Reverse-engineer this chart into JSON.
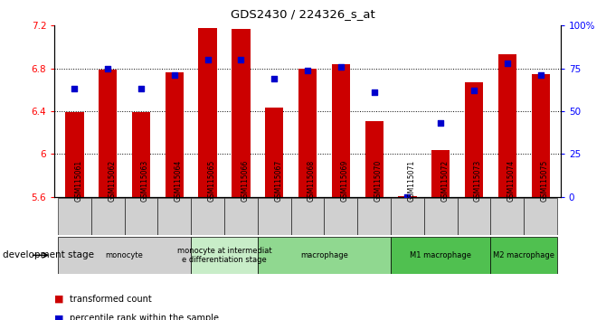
{
  "title": "GDS2430 / 224326_s_at",
  "samples": [
    "GSM115061",
    "GSM115062",
    "GSM115063",
    "GSM115064",
    "GSM115065",
    "GSM115066",
    "GSM115067",
    "GSM115068",
    "GSM115069",
    "GSM115070",
    "GSM115071",
    "GSM115072",
    "GSM115073",
    "GSM115074",
    "GSM115075"
  ],
  "bar_values": [
    6.39,
    6.79,
    6.39,
    6.76,
    7.18,
    7.17,
    6.43,
    6.8,
    6.84,
    6.31,
    5.61,
    6.04,
    6.67,
    6.93,
    6.75
  ],
  "dot_values": [
    63,
    75,
    63,
    71,
    80,
    80,
    69,
    74,
    76,
    61,
    0,
    43,
    62,
    78,
    71
  ],
  "ylim_left": [
    5.6,
    7.2
  ],
  "ylim_right": [
    0,
    100
  ],
  "bar_color": "#cc0000",
  "dot_color": "#0000cc",
  "grid_color": "#000000",
  "stage_groups": [
    {
      "label": "monocyte",
      "start": 0,
      "end": 3,
      "color": "#d0d0d0"
    },
    {
      "label": "monocyte at intermediat\ne differentiation stage",
      "start": 4,
      "end": 5,
      "color": "#c8edc8"
    },
    {
      "label": "macrophage",
      "start": 6,
      "end": 9,
      "color": "#90d890"
    },
    {
      "label": "M1 macrophage",
      "start": 10,
      "end": 12,
      "color": "#50c050"
    },
    {
      "label": "M2 macrophage",
      "start": 13,
      "end": 14,
      "color": "#50c050"
    }
  ],
  "left_yticks": [
    5.6,
    6.0,
    6.4,
    6.8,
    7.2
  ],
  "left_yticklabels": [
    "5.6",
    "6",
    "6.4",
    "6.8",
    "7.2"
  ],
  "right_yticks": [
    0,
    25,
    50,
    75,
    100
  ],
  "right_yticklabels": [
    "0",
    "25",
    "50",
    "75",
    "100%"
  ],
  "legend_items": [
    {
      "label": "transformed count",
      "color": "#cc0000"
    },
    {
      "label": "percentile rank within the sample",
      "color": "#0000cc"
    }
  ],
  "xlabel_stage": "development stage",
  "grid_levels": [
    6.0,
    6.4,
    6.8
  ]
}
